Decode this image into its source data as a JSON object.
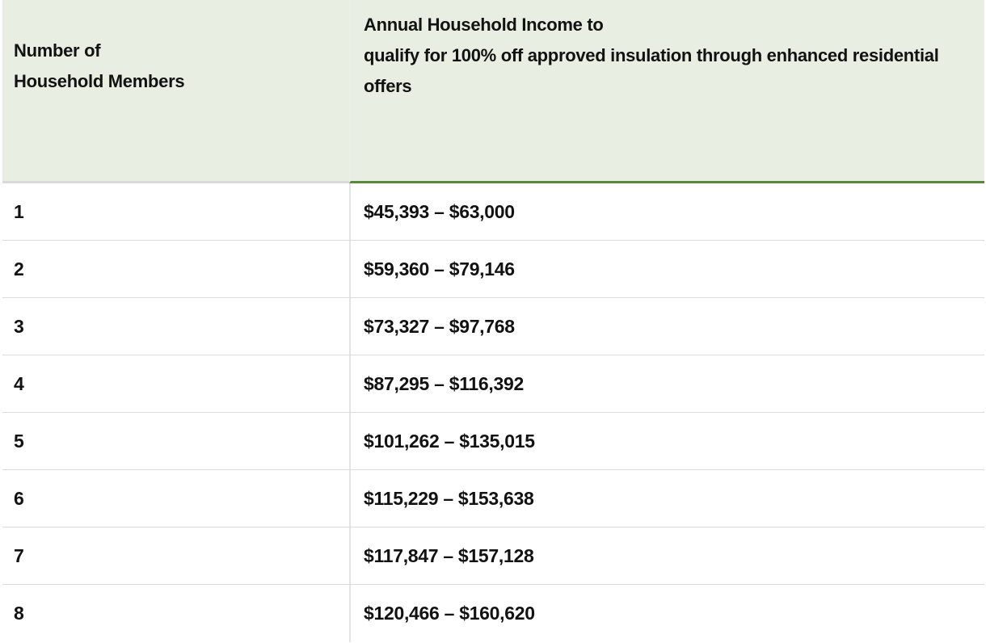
{
  "colors": {
    "header_background": "#e8eee2",
    "header_accent_border_green": "#5a8a37",
    "header_border_gray": "#d9d9d9",
    "row_divider": "#dbdbdb",
    "column_divider": "#e4e4e2",
    "text": "#121212",
    "body_background": "#ffffff"
  },
  "table": {
    "header": {
      "members_col_line1": "Number of",
      "members_col_line2": "Household Members",
      "income_col_line1": "Annual Household Income to",
      "income_col_line2": "qualify for 100% off approved insulation through enhanced residential offers"
    },
    "rows": [
      {
        "members": "1",
        "income_range": "$45,393 – $63,000"
      },
      {
        "members": "2",
        "income_range": "$59,360 – $79,146"
      },
      {
        "members": "3",
        "income_range": "$73,327 – $97,768"
      },
      {
        "members": "4",
        "income_range": "$87,295 – $116,392"
      },
      {
        "members": "5",
        "income_range": "$101,262 – $135,015"
      },
      {
        "members": "6",
        "income_range": "$115,229 – $153,638"
      },
      {
        "members": "7",
        "income_range": "$117,847 – $157,128"
      },
      {
        "members": "8",
        "income_range": "$120,466 – $160,620"
      }
    ]
  }
}
